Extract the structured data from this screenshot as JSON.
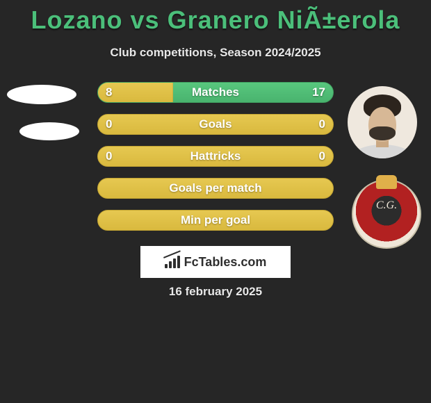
{
  "title": "Lozano vs Granero NiÃ±erola",
  "subtitle": "Club competitions, Season 2024/2025",
  "date": "16 february 2025",
  "brand": {
    "text": "FcTables.com"
  },
  "rows": [
    {
      "label": "Matches",
      "left": "8",
      "right": "17",
      "style": "mixed",
      "left_pct": 32
    },
    {
      "label": "Goals",
      "left": "0",
      "right": "0",
      "style": "yellow",
      "left_pct": 100
    },
    {
      "label": "Hattricks",
      "left": "0",
      "right": "0",
      "style": "yellow",
      "left_pct": 100
    },
    {
      "label": "Goals per match",
      "left": "",
      "right": "",
      "style": "yellow",
      "left_pct": 100
    },
    {
      "label": "Min per goal",
      "left": "",
      "right": "",
      "style": "yellow",
      "left_pct": 100
    }
  ],
  "style": {
    "background_color": "#262626",
    "title_color": "#4bbf7a",
    "text_color": "#e8e8e8",
    "pill_green": {
      "top": "#58c77e",
      "bottom": "#49b36e",
      "border": "#3fa05f"
    },
    "pill_yellow": {
      "top": "#e6c851",
      "bottom": "#d9b93e",
      "border": "#c2a432"
    },
    "title_fontsize": 36,
    "subtitle_fontsize": 17,
    "label_fontsize": 17,
    "pill_width": 340,
    "pill_height": 30,
    "pill_radius": 16
  }
}
